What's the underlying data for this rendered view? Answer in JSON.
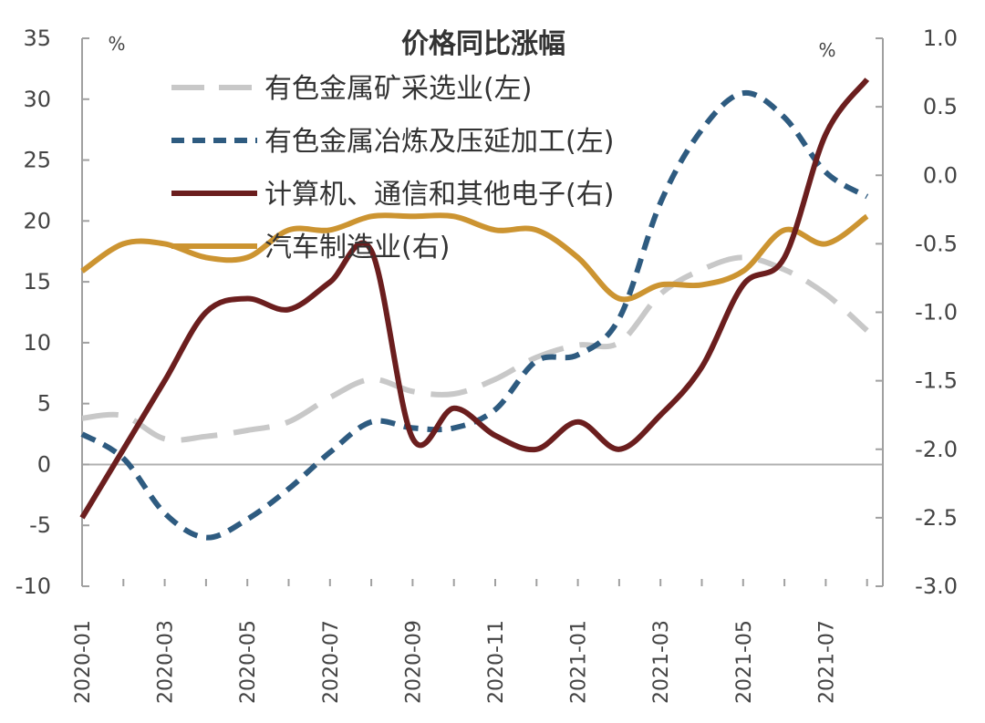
{
  "chart_data": {
    "type": "line",
    "title": "价格同比涨幅",
    "left_unit": "%",
    "right_unit": "%",
    "x": [
      "2020-01",
      "2020-02",
      "2020-03",
      "2020-04",
      "2020-05",
      "2020-06",
      "2020-07",
      "2020-08",
      "2020-09",
      "2020-10",
      "2020-11",
      "2020-12",
      "2021-01",
      "2021-02",
      "2021-03",
      "2021-04",
      "2021-05",
      "2021-06",
      "2021-07",
      "2021-08"
    ],
    "x_tick_labels": [
      "2020-01",
      "2020-03",
      "2020-05",
      "2020-07",
      "2020-09",
      "2020-11",
      "2021-01",
      "2021-03",
      "2021-05",
      "2021-07"
    ],
    "y_left": {
      "range": [
        -10,
        35
      ],
      "ticks": [
        -10,
        -5,
        0,
        5,
        10,
        15,
        20,
        25,
        30,
        35
      ]
    },
    "y_right": {
      "range": [
        -3.0,
        1.0
      ],
      "ticks": [
        "-3.0",
        "-2.5",
        "-2.0",
        "-1.5",
        "-1.0",
        "-0.5",
        "0.0",
        "0.5",
        "1.0"
      ]
    },
    "series": [
      {
        "name": "有色金属矿采选业(左)",
        "axis": "left",
        "color": "#c8c8c8",
        "style": "long-dash",
        "values": [
          3.8,
          4.0,
          2.1,
          2.3,
          2.8,
          3.5,
          5.5,
          7.0,
          6.0,
          5.8,
          7.0,
          8.8,
          9.8,
          10.0,
          14.0,
          16.0,
          17.0,
          16.0,
          14.0,
          11.0
        ]
      },
      {
        "name": "有色金属冶炼及压延加工(左)",
        "axis": "left",
        "color": "#2e5b80",
        "style": "short-dash",
        "values": [
          2.5,
          0.5,
          -4.0,
          -6.0,
          -4.5,
          -2.0,
          1.0,
          3.5,
          3.0,
          3.0,
          4.5,
          8.5,
          9.0,
          12.0,
          21.5,
          27.5,
          30.5,
          28.5,
          24.0,
          22.0
        ]
      },
      {
        "name": "计算机、通信和其他电子(右)",
        "axis": "right",
        "color": "#6b1e1e",
        "style": "solid",
        "values": [
          -2.5,
          -2.0,
          -1.5,
          -1.0,
          -0.9,
          -0.98,
          -0.78,
          -0.55,
          -1.92,
          -1.7,
          -1.9,
          -2.0,
          -1.8,
          -2.0,
          -1.75,
          -1.4,
          -0.8,
          -0.6,
          0.3,
          0.7
        ]
      },
      {
        "name": "汽车制造业(右)",
        "axis": "right",
        "color": "#cc9431",
        "style": "solid",
        "values": [
          -0.7,
          -0.5,
          -0.5,
          -0.6,
          -0.6,
          -0.4,
          -0.4,
          -0.3,
          -0.3,
          -0.3,
          -0.4,
          -0.4,
          -0.6,
          -0.9,
          -0.8,
          -0.8,
          -0.7,
          -0.4,
          -0.5,
          -0.3
        ]
      }
    ]
  }
}
